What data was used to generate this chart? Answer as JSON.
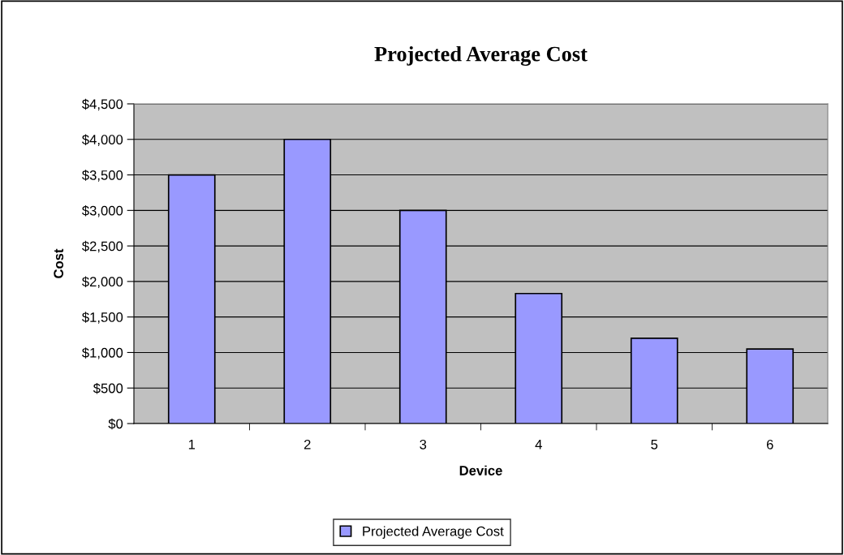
{
  "chart_data": {
    "type": "bar",
    "title": "Projected Average Cost",
    "xlabel": "Device",
    "ylabel": "Cost",
    "categories": [
      "1",
      "2",
      "3",
      "4",
      "5",
      "6"
    ],
    "series": [
      {
        "name": "Projected Average Cost",
        "color": "#9999ff",
        "values": [
          3500,
          4000,
          3000,
          1830,
          1200,
          1050
        ]
      }
    ],
    "ylim": [
      0,
      4500
    ],
    "yticks": [
      {
        "value": 0,
        "label": "$0"
      },
      {
        "value": 500,
        "label": "$500"
      },
      {
        "value": 1000,
        "label": "$1,000"
      },
      {
        "value": 1500,
        "label": "$1,500"
      },
      {
        "value": 2000,
        "label": "$2,000"
      },
      {
        "value": 2500,
        "label": "$2,500"
      },
      {
        "value": 3000,
        "label": "$3,000"
      },
      {
        "value": 3500,
        "label": "$3,500"
      },
      {
        "value": 4000,
        "label": "$4,000"
      },
      {
        "value": 4500,
        "label": "$4,500"
      }
    ],
    "grid": "y",
    "legend": "bottom"
  }
}
